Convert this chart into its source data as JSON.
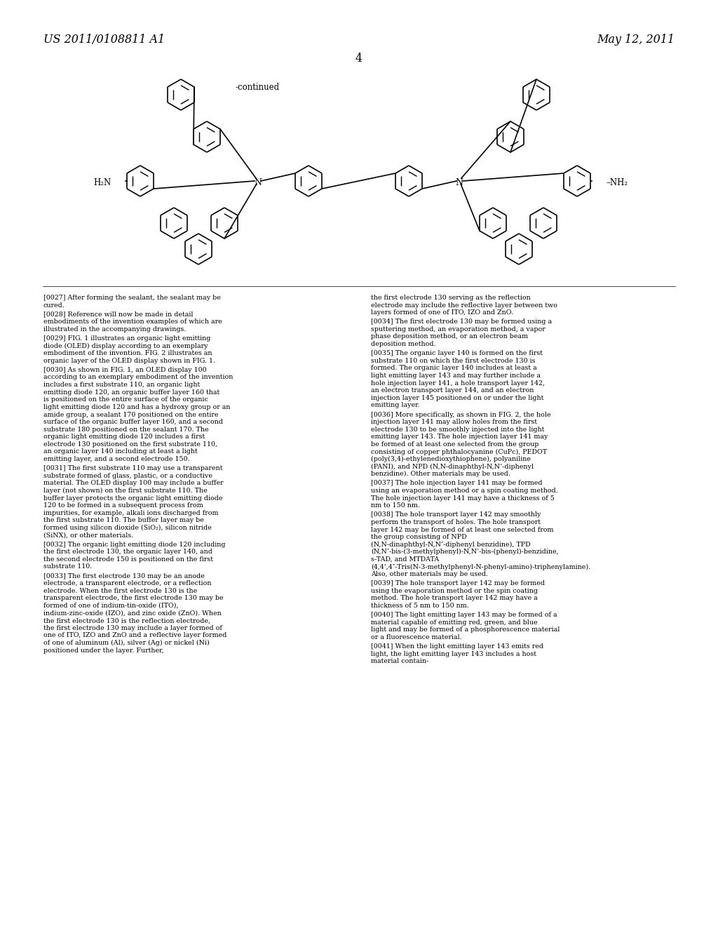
{
  "background_color": "#ffffff",
  "header_left": "US 2011/0108811 A1",
  "header_right": "May 12, 2011",
  "page_number": "4",
  "continued_label": "-continued",
  "header_font_size": 11.5,
  "page_num_font_size": 11.5,
  "body_font_size": 6.85,
  "col1_paragraphs": [
    {
      "tag": "[0027]",
      "bold_nums": [],
      "text": "After forming the sealant, the sealant may be cured."
    },
    {
      "tag": "[0028]",
      "bold_nums": [],
      "text": "Reference will now be made in detail embodiments of the invention examples of which are illustrated in the accompanying drawings."
    },
    {
      "tag": "[0029]",
      "bold_nums": [
        "1",
        "2",
        "1"
      ],
      "text": "FIG. 1 illustrates an organic light emitting diode (OLED) display according to an exemplary embodiment of the invention. FIG. 2 illustrates an organic layer of the OLED display shown in FIG. 1."
    },
    {
      "tag": "[0030]",
      "bold_nums": [
        "1",
        "100",
        "110",
        "120",
        "160",
        "120",
        "170",
        "160",
        "180",
        "170",
        "120",
        "130",
        "110",
        "140",
        "150"
      ],
      "text": "As shown in FIG. 1, an OLED display 100 according to an exemplary embodiment of the invention includes a first substrate 110, an organic light emitting diode 120, an organic buffer layer 160 that is positioned on the entire surface of the organic light emitting diode 120 and has a hydroxy group or an amide group, a sealant 170 positioned on the entire surface of the organic buffer layer 160, and a second substrate 180 positioned on the sealant 170. The organic light emitting diode 120 includes a first electrode 130 positioned on the first substrate 110, an organic layer 140 including at least a light emitting layer, and a second electrode 150."
    },
    {
      "tag": "[0031]",
      "bold_nums": [
        "110",
        "100",
        "110",
        "120",
        "110",
        "110"
      ],
      "text": "The first substrate 110 may use a transparent substrate formed of glass, plastic, or a conductive material. The OLED display 100 may include a buffer layer (not shown) on the first substrate 110. The buffer layer protects the organic light emitting diode 120 to be formed in a subsequent process from impurities, for example, alkali ions discharged from the first substrate 110. The buffer layer may be formed using silicon dioxide (SiO₂), silicon nitride (SiNX), or other materials."
    },
    {
      "tag": "[0032]",
      "bold_nums": [
        "120",
        "130",
        "140",
        "150",
        "110"
      ],
      "text": "The organic light emitting diode 120 including the first electrode 130, the organic layer 140, and the second electrode 150 is positioned on the first substrate 110."
    },
    {
      "tag": "[0033]",
      "bold_nums": [
        "130",
        "130",
        "130",
        "130",
        "130",
        "130"
      ],
      "text": "The first electrode 130 may be an anode electrode, a transparent electrode, or a reflection electrode. When the first electrode 130 is the transparent electrode, the first electrode 130 may be formed of one of indium-tin-oxide (ITO), indium-zinc-oxide (IZO), and zinc oxide (ZnO). When the first electrode 130 is the reflection electrode, the first electrode 130 may include a layer formed of one of ITO, IZO and ZnO and a reflective layer formed of one of aluminum (Al), silver (Ag) or nickel (Ni) positioned under the layer. Further,"
    }
  ],
  "col2_paragraphs": [
    {
      "tag": "",
      "bold_nums": [
        "130"
      ],
      "text": "the first electrode 130 serving as the reflection electrode may include the reflective layer between two layers formed of one of ITO, IZO and ZnO."
    },
    {
      "tag": "[0034]",
      "bold_nums": [
        "130"
      ],
      "text": "The first electrode 130 may be formed using a sputtering method, an evaporation method, a vapor phase deposition method, or an electron beam deposition method."
    },
    {
      "tag": "[0035]",
      "bold_nums": [
        "140",
        "110",
        "130",
        "140",
        "143",
        "141",
        "142",
        "144",
        "145"
      ],
      "text": "The organic layer 140 is formed on the first substrate 110 on which the first electrode 130 is formed. The organic layer 140 includes at least a light emitting layer 143 and may further include a hole injection layer 141, a hole transport layer 142, an electron transport layer 144, and an electron injection layer 145 positioned on or under the light emitting layer."
    },
    {
      "tag": "[0036]",
      "bold_nums": [
        "2",
        "141",
        "130",
        "143",
        "141",
        "141"
      ],
      "text": "More specifically, as shown in FIG. 2, the hole injection layer 141 may allow holes from the first electrode 130 to be smoothly injected into the light emitting layer 143. The hole injection layer 141 may be formed of at least one selected from the group consisting of copper phthalocyanine (CuPc), PEDOT (poly(3,4)-ethylenedioxythiophene),  polyaniline (PANI), and NPD (N,N-dinaphthyl-N,N’-diphenyl benzidine). Other materials may be used."
    },
    {
      "tag": "[0037]",
      "bold_nums": [
        "141",
        "141"
      ],
      "text": "The hole injection layer 141 may be formed using an evaporation method or a spin coating method. The hole injection layer 141 may have a thickness of 5 nm to 150 nm."
    },
    {
      "tag": "[0038]",
      "bold_nums": [
        "142",
        "142"
      ],
      "text": "The hole transport layer 142 may smoothly perform the transport of holes. The hole transport layer 142 may be formed of at least one selected from the group consisting of NPD (N,N-dinaphthyl-N,N’-diphenyl  benzidine),  TPD (N,N’-bis-(3-methylphenyl)-N,N’-bis-(phenyl)-benzidine, s-TAD, and MTDATA (4,4’,4″-Tris(N-3-methylphenyl-N-phenyl-amino)-triphenylamine). Also, other materials may be used."
    },
    {
      "tag": "[0039]",
      "bold_nums": [
        "142",
        "142"
      ],
      "text": "The hole transport layer 142 may be formed using the evaporation method or the spin coating method. The hole transport layer 142 may have a thickness of 5 nm to 150 nm."
    },
    {
      "tag": "[0040]",
      "bold_nums": [
        "143"
      ],
      "text": "The light emitting layer 143 may be formed of a material capable of emitting red, green, and blue light and may be formed of a phosphorescence material or a fluorescence material."
    },
    {
      "tag": "[0041]",
      "bold_nums": [
        "143",
        "143"
      ],
      "text": "When the light emitting layer 143 emits red light, the light emitting layer 143 includes a host material contain-"
    }
  ]
}
